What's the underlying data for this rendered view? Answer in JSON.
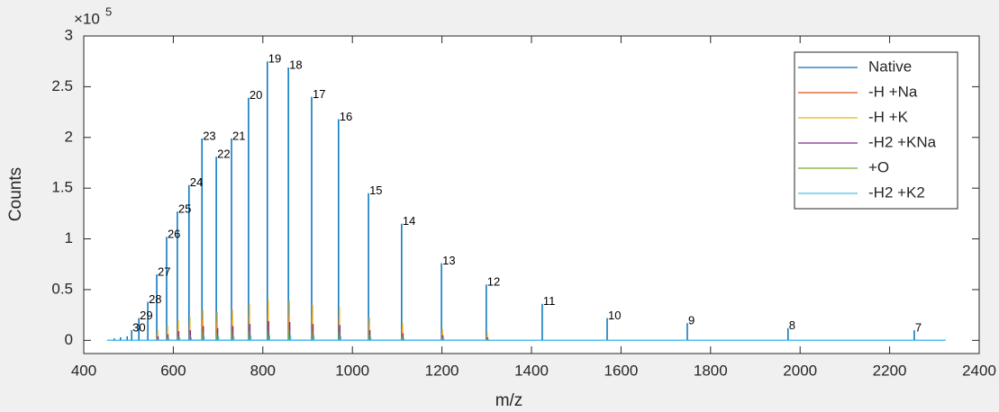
{
  "chart_data": {
    "type": "stem",
    "xlabel": "m/z",
    "ylabel": "Counts",
    "y_scale_label": {
      "base": "×10",
      "exponent": "5"
    },
    "xlim": [
      400,
      2400
    ],
    "xticks": [
      400,
      600,
      800,
      1000,
      1200,
      1400,
      1600,
      1800,
      2000,
      2200,
      2400
    ],
    "ylim": [
      -13000,
      300000
    ],
    "yticks": [
      {
        "value": 0,
        "label": "0"
      },
      {
        "value": 50000,
        "label": "0.5"
      },
      {
        "value": 100000,
        "label": "1"
      },
      {
        "value": 150000,
        "label": "1.5"
      },
      {
        "value": 200000,
        "label": "2"
      },
      {
        "value": 250000,
        "label": "2.5"
      },
      {
        "value": 300000,
        "label": "3"
      }
    ],
    "legend": "upper right",
    "series": [
      {
        "name": "Native",
        "color": "#0072bd",
        "x": [
          452,
          468,
          482,
          497,
          507,
          523,
          543,
          563,
          585,
          609,
          635,
          664,
          696,
          730,
          768,
          810,
          857,
          909,
          969,
          1036,
          1110,
          1199,
          1299,
          1424,
          1569,
          1748,
          1973,
          2255,
          2325
        ],
        "values": [
          0,
          2000,
          3000,
          4000,
          10000,
          22000,
          38000,
          65000,
          102000,
          127000,
          153000,
          199000,
          181000,
          199000,
          239000,
          275000,
          269000,
          240000,
          218000,
          145000,
          115000,
          76000,
          55000,
          36000,
          22000,
          17000,
          12000,
          10000,
          0
        ],
        "peak_labels": [
          null,
          null,
          null,
          null,
          30,
          29,
          28,
          27,
          26,
          25,
          24,
          23,
          22,
          21,
          20,
          19,
          18,
          17,
          16,
          15,
          14,
          13,
          12,
          11,
          10,
          9,
          8,
          7,
          null
        ]
      },
      {
        "name": "-H +Na",
        "color": "#d95319",
        "x": [
          564,
          586,
          610,
          636,
          665,
          697,
          731,
          769,
          811,
          858,
          910,
          970,
          1037,
          1111,
          1200,
          1300
        ],
        "values": [
          6000,
          9000,
          13000,
          15000,
          20000,
          18000,
          20000,
          24000,
          26000,
          25000,
          23000,
          22000,
          15000,
          11000,
          7000,
          5000
        ]
      },
      {
        "name": "-H +K",
        "color": "#edb120",
        "x": [
          565,
          587,
          611,
          637,
          666,
          698,
          732,
          770,
          812,
          859,
          911,
          971,
          1038,
          1112,
          1201,
          1301
        ],
        "values": [
          10000,
          15000,
          20000,
          23000,
          30000,
          28000,
          30000,
          36000,
          40000,
          39000,
          35000,
          33000,
          22000,
          17000,
          11000,
          8000
        ]
      },
      {
        "name": "-H2 +KNa",
        "color": "#7e2f8e",
        "x": [
          566,
          588,
          612,
          638,
          667,
          699,
          733,
          771,
          813,
          860,
          912,
          972,
          1039,
          1113,
          1202,
          1302
        ],
        "values": [
          4000,
          6000,
          9000,
          10000,
          14000,
          12000,
          14000,
          16000,
          19000,
          18000,
          16000,
          15000,
          10000,
          7000,
          5000,
          3000
        ]
      },
      {
        "name": "+O",
        "color": "#77ac30",
        "x": [
          564,
          586,
          610,
          636,
          665,
          697,
          731,
          769,
          811,
          858,
          910,
          970,
          1037,
          1111,
          1200,
          1300
        ],
        "values": [
          2000,
          3000,
          5000,
          6000,
          8000,
          7000,
          8000,
          9000,
          10000,
          10000,
          9000,
          8000,
          6000,
          4000,
          3000,
          2000
        ]
      },
      {
        "name": "-H2 +K2",
        "color": "#4dbeee",
        "x": [
          452,
          568,
          590,
          614,
          640,
          669,
          701,
          735,
          773,
          815,
          862,
          914,
          974,
          1041,
          1115,
          1204,
          1304,
          2325
        ],
        "values": [
          0,
          1000,
          2000,
          3000,
          3000,
          4000,
          4000,
          4000,
          5000,
          5000,
          5000,
          5000,
          4000,
          3000,
          2000,
          2000,
          1000,
          0
        ]
      }
    ]
  }
}
